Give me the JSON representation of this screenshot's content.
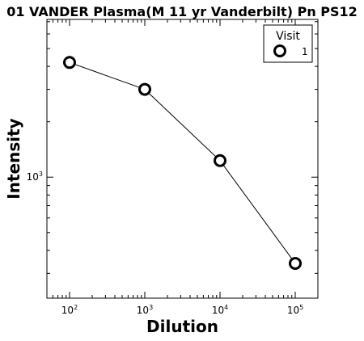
{
  "chart_data": {
    "type": "line",
    "title": "01 VANDER Plasma(M 11 yr Vanderbilt) Pn PS12",
    "xlabel": "Dilution",
    "ylabel": "Intensity",
    "x_scale": "log",
    "y_scale": "log",
    "xlim": [
      50,
      200000
    ],
    "ylim": [
      220,
      7200
    ],
    "x_ticks": [
      {
        "base": "10",
        "exp": "2",
        "value": 100
      },
      {
        "base": "10",
        "exp": "3",
        "value": 1000
      },
      {
        "base": "10",
        "exp": "4",
        "value": 10000
      },
      {
        "base": "10",
        "exp": "5",
        "value": 100000
      }
    ],
    "y_ticks": [
      {
        "base": "10",
        "exp": "3",
        "value": 1000
      }
    ],
    "grid": false,
    "legend": {
      "title": "Visit",
      "placement": "top-right",
      "entries": [
        "1"
      ]
    },
    "series": [
      {
        "name": "1",
        "color": "#000000",
        "marker": "open-circle",
        "x": [
          100,
          1000,
          10000,
          100000
        ],
        "y": [
          4200,
          3000,
          1230,
          340
        ]
      }
    ]
  }
}
